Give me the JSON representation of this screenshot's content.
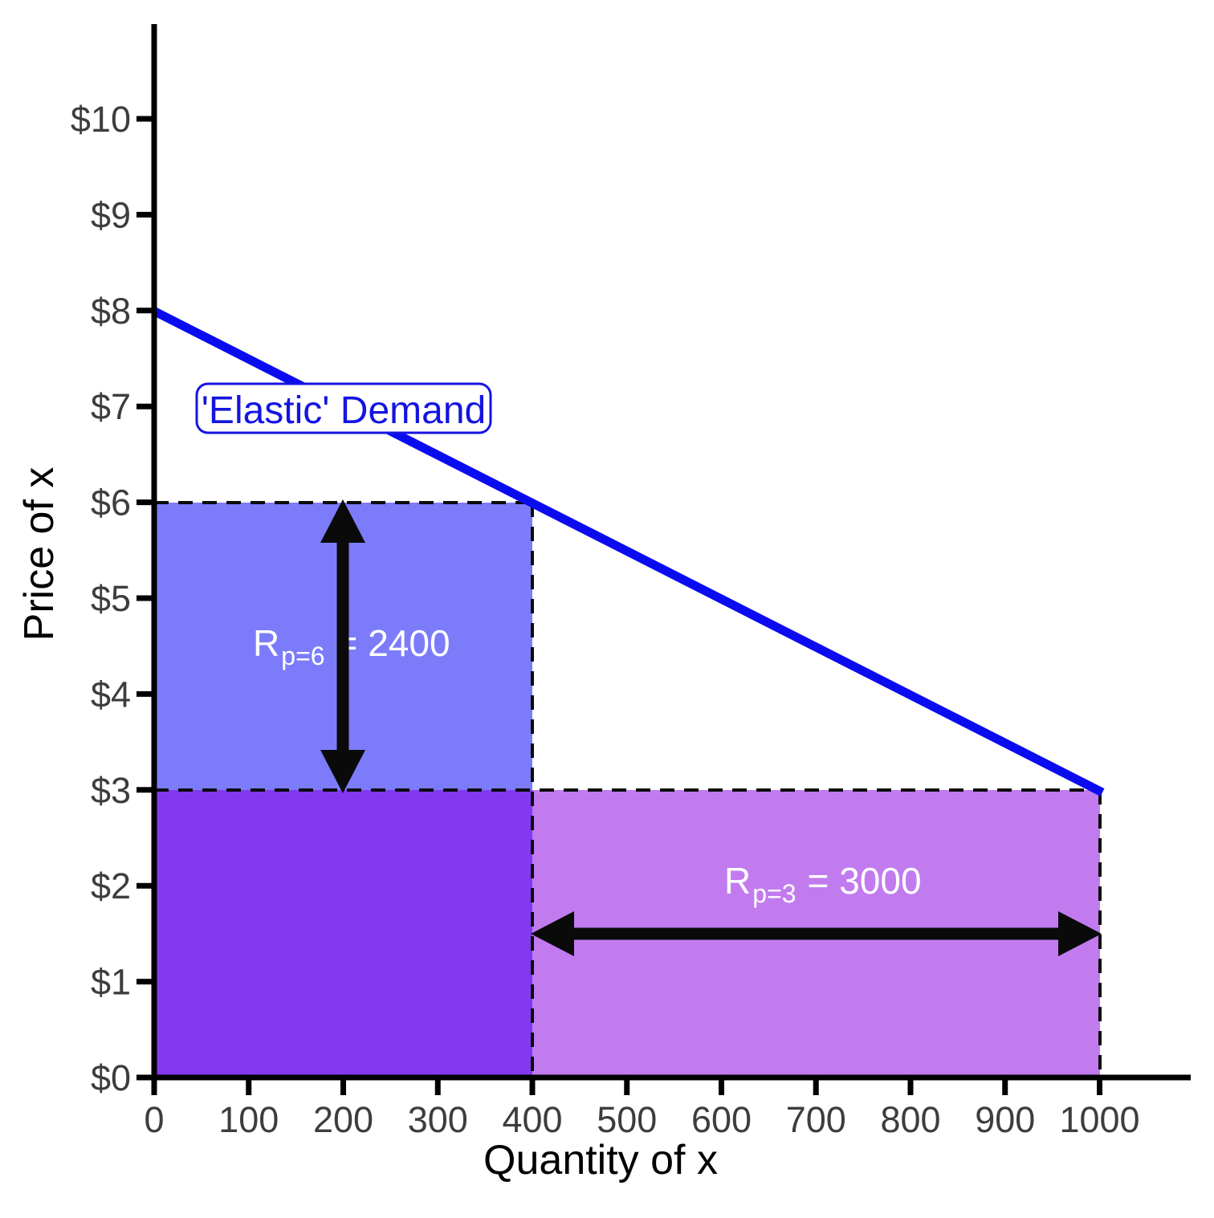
{
  "chart_data": {
    "type": "line",
    "title": "",
    "xlabel": "Quantity of x",
    "ylabel": "Price of x",
    "xlim": [
      0,
      1095
    ],
    "ylim": [
      0,
      11
    ],
    "grid": false,
    "x_ticks": [
      {
        "value": 0,
        "label": "0"
      },
      {
        "value": 100,
        "label": "100"
      },
      {
        "value": 200,
        "label": "200"
      },
      {
        "value": 300,
        "label": "300"
      },
      {
        "value": 400,
        "label": "400"
      },
      {
        "value": 500,
        "label": "500"
      },
      {
        "value": 600,
        "label": "600"
      },
      {
        "value": 700,
        "label": "700"
      },
      {
        "value": 800,
        "label": "800"
      },
      {
        "value": 900,
        "label": "900"
      },
      {
        "value": 1000,
        "label": "1000"
      }
    ],
    "y_ticks": [
      {
        "value": 0,
        "label": "$0"
      },
      {
        "value": 1,
        "label": "$1"
      },
      {
        "value": 2,
        "label": "$2"
      },
      {
        "value": 3,
        "label": "$3"
      },
      {
        "value": 4,
        "label": "$4"
      },
      {
        "value": 5,
        "label": "$5"
      },
      {
        "value": 6,
        "label": "$6"
      },
      {
        "value": 7,
        "label": "$7"
      },
      {
        "value": 8,
        "label": "$8"
      },
      {
        "value": 9,
        "label": "$9"
      },
      {
        "value": 10,
        "label": "$10"
      }
    ],
    "series": [
      {
        "name": "'Elastic' Demand",
        "type": "line",
        "x": [
          0,
          1000
        ],
        "y": [
          8,
          3
        ]
      }
    ],
    "demand_label": {
      "text": "'Elastic' Demand"
    },
    "revenue_areas": [
      {
        "id": "rev-p6-upper",
        "price": 6,
        "quantity": 400,
        "revenue": 2400,
        "region_x": [
          0,
          400
        ],
        "region_y": [
          3,
          6
        ]
      },
      {
        "id": "rev-overlap",
        "region_x": [
          0,
          400
        ],
        "region_y": [
          0,
          3
        ]
      },
      {
        "id": "rev-p3-right",
        "price": 3,
        "quantity": 1000,
        "revenue": 3000,
        "region_x": [
          400,
          1000
        ],
        "region_y": [
          0,
          3
        ]
      }
    ],
    "annotations": [
      {
        "prefix": "R",
        "sub": "p=6",
        "suffix": "= 2400",
        "value": 2400,
        "arrow": "vertical-double",
        "arrow_x": 200,
        "arrow_y_from": 3,
        "arrow_y_to": 6
      },
      {
        "prefix": "R",
        "sub": "p=3",
        "suffix": "= 3000",
        "value": 3000,
        "arrow": "horizontal-double",
        "arrow_y": 1.5,
        "arrow_x_from": 400,
        "arrow_x_to": 1000
      }
    ],
    "colors": {
      "demand_line": "#0b0bf0",
      "demand_label_blue": "#1414e0",
      "axis": "#000000",
      "tick_label": "#3d3d3d",
      "rect_p6": "#7c7cfa",
      "rect_overlap": "#8239f0",
      "rect_p3": "#c17bef",
      "dashed_guide": "#0a0a0a",
      "arrow": "#0a0a0a",
      "annotation_text": "#ffffff",
      "label_box_fill": "#ffffff"
    }
  }
}
